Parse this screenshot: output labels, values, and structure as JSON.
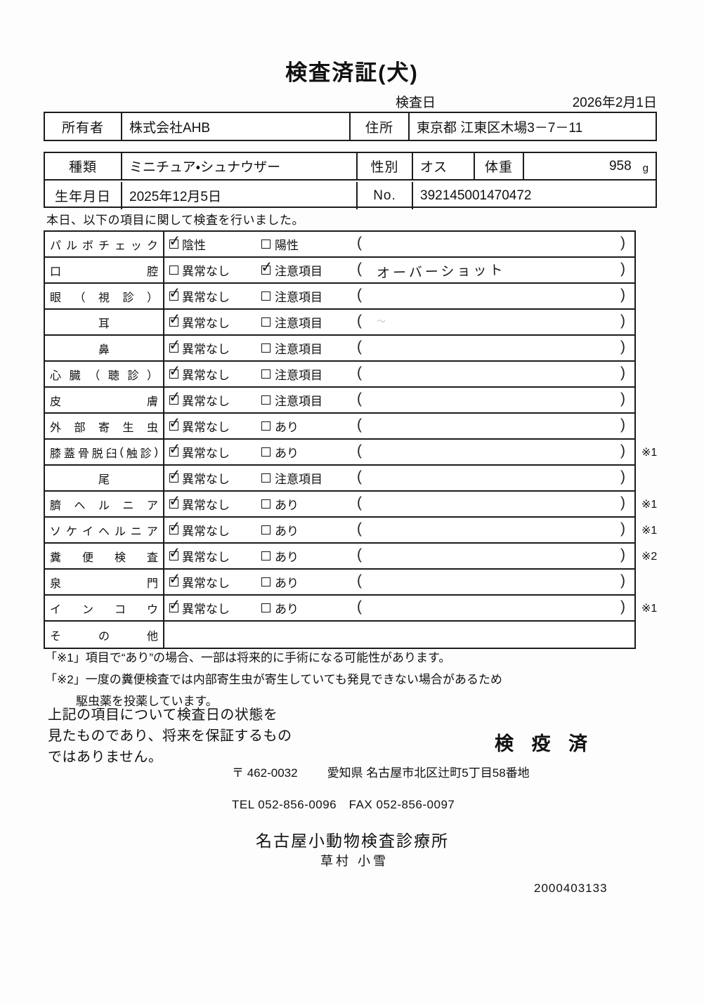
{
  "title": "検査済証(犬)",
  "exam_date": {
    "label": "検査日",
    "value": "2026年2月1日"
  },
  "owner_table": {
    "owner_label": "所有者",
    "owner_value": "株式会社AHB",
    "address_label": "住所",
    "address_value": "東京都 江東区木場3－7－11"
  },
  "pet_table": {
    "species_label": "種類",
    "species_value": "ミニチュア・シュナウザー",
    "sex_label": "性別",
    "sex_value": "オス",
    "weight_label": "体重",
    "weight_value": "958",
    "weight_unit": "g",
    "birth_label": "生年月日",
    "birth_value": "2025年12月5日",
    "no_label": "No.",
    "no_value": "392145001470472"
  },
  "intro": "本日、以下の項目に関して検査を行いました。",
  "checklist": {
    "paren_open": "(",
    "paren_close": ")",
    "rows": [
      {
        "label": "パルボチェック",
        "align": "justify",
        "opt1": "陰性",
        "opt1_checked": true,
        "opt2": "陽性",
        "opt2_checked": false,
        "note": "",
        "footnote": ""
      },
      {
        "label": "口腔",
        "align": "justify",
        "opt1": "異常なし",
        "opt1_checked": false,
        "opt2": "注意項目",
        "opt2_checked": true,
        "note": "オーバーショット",
        "footnote": ""
      },
      {
        "label": "眼（視診）",
        "align": "justify",
        "opt1": "異常なし",
        "opt1_checked": true,
        "opt2": "注意項目",
        "opt2_checked": false,
        "note": "",
        "footnote": ""
      },
      {
        "label": "耳",
        "align": "center",
        "opt1": "異常なし",
        "opt1_checked": true,
        "opt2": "注意項目",
        "opt2_checked": false,
        "note": "",
        "footnote": ""
      },
      {
        "label": "鼻",
        "align": "center",
        "opt1": "異常なし",
        "opt1_checked": true,
        "opt2": "注意項目",
        "opt2_checked": false,
        "note": "",
        "footnote": ""
      },
      {
        "label": "心臓（聴診）",
        "align": "justify",
        "opt1": "異常なし",
        "opt1_checked": true,
        "opt2": "注意項目",
        "opt2_checked": false,
        "note": "",
        "footnote": ""
      },
      {
        "label": "皮膚",
        "align": "justify",
        "opt1": "異常なし",
        "opt1_checked": true,
        "opt2": "注意項目",
        "opt2_checked": false,
        "note": "",
        "footnote": ""
      },
      {
        "label": "外部寄生虫",
        "align": "justify",
        "opt1": "異常なし",
        "opt1_checked": true,
        "opt2": "あり",
        "opt2_checked": false,
        "note": "",
        "footnote": ""
      },
      {
        "label": "膝蓋骨脱臼(触診)",
        "align": "justify",
        "opt1": "異常なし",
        "opt1_checked": true,
        "opt2": "あり",
        "opt2_checked": false,
        "note": "",
        "footnote": "※1"
      },
      {
        "label": "尾",
        "align": "center",
        "opt1": "異常なし",
        "opt1_checked": true,
        "opt2": "注意項目",
        "opt2_checked": false,
        "note": "",
        "footnote": ""
      },
      {
        "label": "臍ヘルニア",
        "align": "justify",
        "opt1": "異常なし",
        "opt1_checked": true,
        "opt2": "あり",
        "opt2_checked": false,
        "note": "",
        "footnote": "※1"
      },
      {
        "label": "ソケイヘルニア",
        "align": "justify",
        "opt1": "異常なし",
        "opt1_checked": true,
        "opt2": "あり",
        "opt2_checked": false,
        "note": "",
        "footnote": "※1"
      },
      {
        "label": "糞便検査",
        "align": "justify",
        "opt1": "異常なし",
        "opt1_checked": true,
        "opt2": "あり",
        "opt2_checked": false,
        "note": "",
        "footnote": "※2"
      },
      {
        "label": "泉門",
        "align": "justify",
        "opt1": "異常なし",
        "opt1_checked": true,
        "opt2": "あり",
        "opt2_checked": false,
        "note": "",
        "footnote": ""
      },
      {
        "label": "インコウ",
        "align": "justify",
        "opt1": "異常なし",
        "opt1_checked": true,
        "opt2": "あり",
        "opt2_checked": false,
        "note": "",
        "footnote": "※1"
      },
      {
        "label": "その他",
        "align": "justify",
        "empty": true,
        "note": "",
        "footnote": ""
      }
    ]
  },
  "footnotes": [
    "「※1」項目で“あり”の場合、一部は将来的に手術になる可能性があります。",
    "「※2」一度の糞便検査では内部寄生虫が寄生していても発見できない場合があるため",
    "駆虫薬を投薬しています。"
  ],
  "statement": [
    "上記の項目について検査日の状態を",
    "見たものであり、将来を保証するもの",
    "ではありません。"
  ],
  "quarantine_stamp": "検 疫 済",
  "clinic": {
    "postal": "〒 462-0032",
    "address": "愛知県 名古屋市北区辻町5丁目58番地",
    "tel_fax": "TEL 052-856-0096　FAX 052-856-0097",
    "name": "名古屋小動物検査診療所",
    "examiner": "草村 小雪",
    "serial": "2000403133"
  }
}
